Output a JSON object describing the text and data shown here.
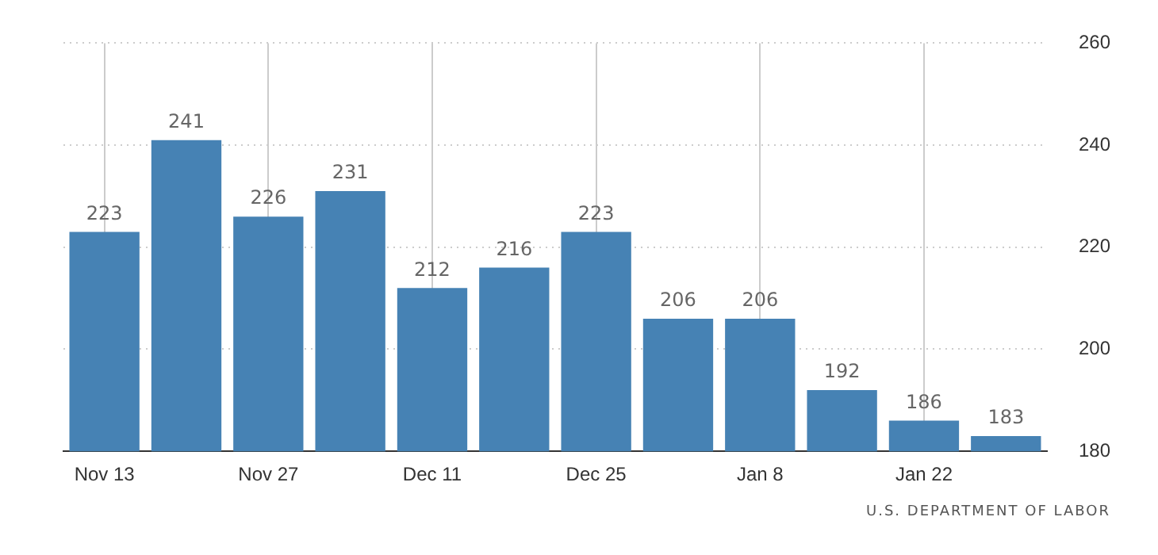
{
  "chart_data": {
    "type": "bar",
    "categories": [
      "Nov 13",
      null,
      "Nov 27",
      null,
      "Dec 11",
      null,
      "Dec 25",
      null,
      "Jan 8",
      null,
      "Jan 22",
      null
    ],
    "values": [
      223,
      241,
      226,
      231,
      212,
      216,
      223,
      206,
      206,
      192,
      186,
      183
    ],
    "color": "#4682b4",
    "ylim": [
      180,
      260
    ],
    "yticks": [
      180,
      200,
      220,
      240,
      260
    ],
    "grid": true,
    "data_labels": true,
    "annotations": [
      "U.S. DEPARTMENT OF LABOR"
    ]
  }
}
